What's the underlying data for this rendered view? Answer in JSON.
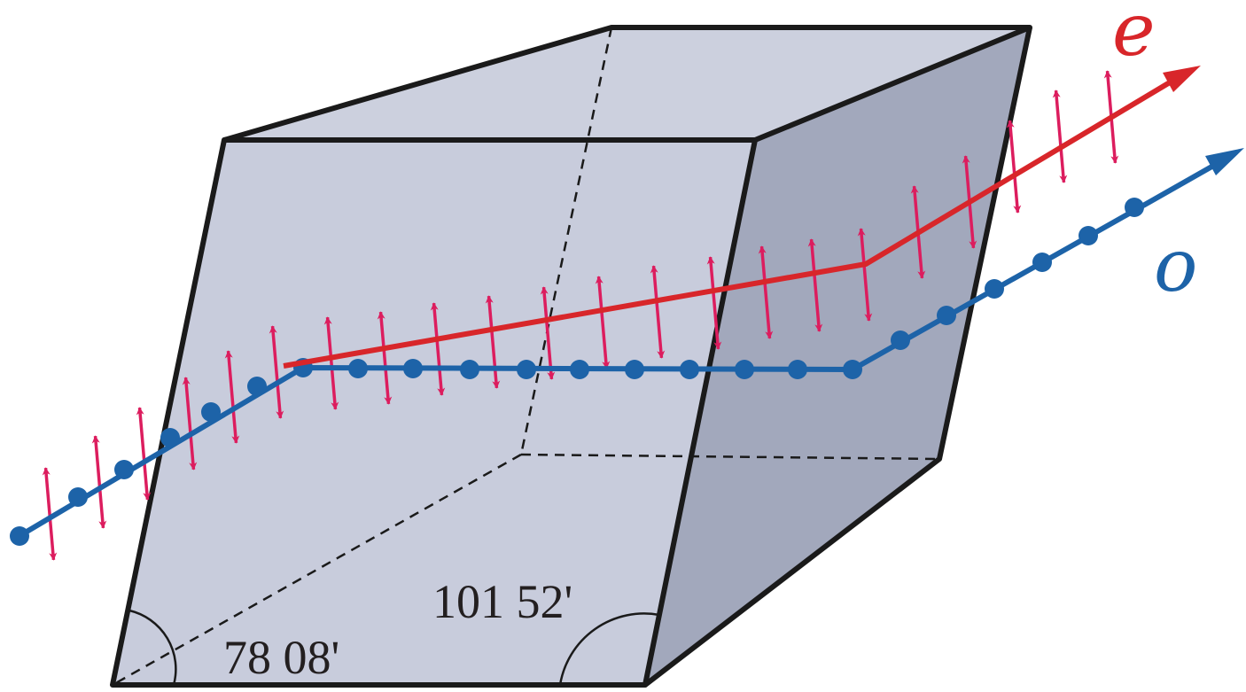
{
  "labels": {
    "extraordinary": "e",
    "ordinary": "o",
    "obtuse_angle": "101 52'",
    "acute_angle": "78 08'"
  },
  "colors": {
    "crystal_front": "#c8ccdc",
    "crystal_top": "#ccd0de",
    "crystal_side": "#a2a8bc",
    "edge": "#1a1a1a",
    "e_ray": "#d8262a",
    "o_ray": "#1d63a8",
    "e_polarization_arrows": "#dc1d5e"
  }
}
